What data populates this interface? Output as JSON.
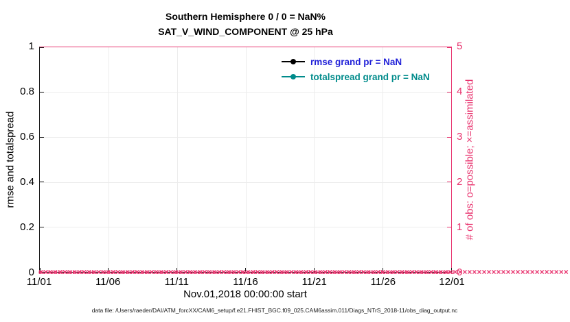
{
  "figure": {
    "title_line1": "Southern Hemisphere 0 / 0 = NaN%",
    "title_line2": "SAT_V_WIND_COMPONENT @ 25 hPa"
  },
  "axes": {
    "left": {
      "label": "rmse and totalspread",
      "ticks": [
        "0",
        "0.2",
        "0.4",
        "0.6",
        "0.8",
        "1"
      ],
      "color": "#000000"
    },
    "right": {
      "label": "# of obs: o=possible; ×=assimilated",
      "ticks": [
        "0",
        "1",
        "2",
        "3",
        "4",
        "5"
      ],
      "color": "#e8336e"
    },
    "x": {
      "ticks": [
        "11/01",
        "11/06",
        "11/11",
        "11/16",
        "11/21",
        "11/26",
        "12/01"
      ],
      "label": "Nov.01,2018 00:00:00 start"
    }
  },
  "legend": [
    {
      "label": "rmse grand pr = NaN",
      "marker_color": "#000000",
      "text_color": "#2121d8"
    },
    {
      "label": "totalspread grand pr = NaN",
      "marker_color": "#008b8b",
      "text_color": "#008b8b"
    }
  ],
  "obs_markers": {
    "possible_glyph": "o",
    "assimilated_glyph": "×",
    "color": "#e8336e",
    "count": 110,
    "value": 0
  },
  "caption": "data file: /Users/raeder/DAI/ATM_forcXX/CAM6_setup/f.e21.FHIST_BGC.f09_025.CAM6assim.011/Diags_NTrS_2018-11/obs_diag_output.nc",
  "chart_data": {
    "type": "line",
    "title": "Southern Hemisphere 0 / 0 = NaN% — SAT_V_WIND_COMPONENT @ 25 hPa",
    "xlabel": "Nov.01,2018 00:00:00 start",
    "x_ticks": [
      "11/01",
      "11/06",
      "11/11",
      "11/16",
      "11/21",
      "11/26",
      "12/01"
    ],
    "x_range": "Nov 01 2018 through Dec 01 2018, daily assimilation time bins",
    "left_axis": {
      "ylabel": "rmse and totalspread",
      "ylim": [
        0,
        1
      ]
    },
    "right_axis": {
      "ylabel": "# of obs: o=possible; ×=assimilated",
      "ylim": [
        0,
        5
      ]
    },
    "grid": true,
    "legend_position": "upper right inside plot, no box",
    "series": [
      {
        "name": "rmse grand pr = NaN",
        "axis": "left",
        "color": "#000000",
        "marker": "filled circle",
        "values_summary": "all NaN - no curve drawn"
      },
      {
        "name": "totalspread grand pr = NaN",
        "axis": "left",
        "color": "#008b8b",
        "marker": "filled circle",
        "values_summary": "all NaN - no curve drawn"
      },
      {
        "name": "# of obs possible (o)",
        "axis": "right",
        "color": "#e8336e",
        "marker": "o",
        "values_summary": "constant 0 at every time bin from 11/01 to 12/01"
      },
      {
        "name": "# of obs assimilated (x)",
        "axis": "right",
        "color": "#e8336e",
        "marker": "x",
        "values_summary": "constant 0 at every time bin from 11/01 to 12/01"
      }
    ]
  }
}
